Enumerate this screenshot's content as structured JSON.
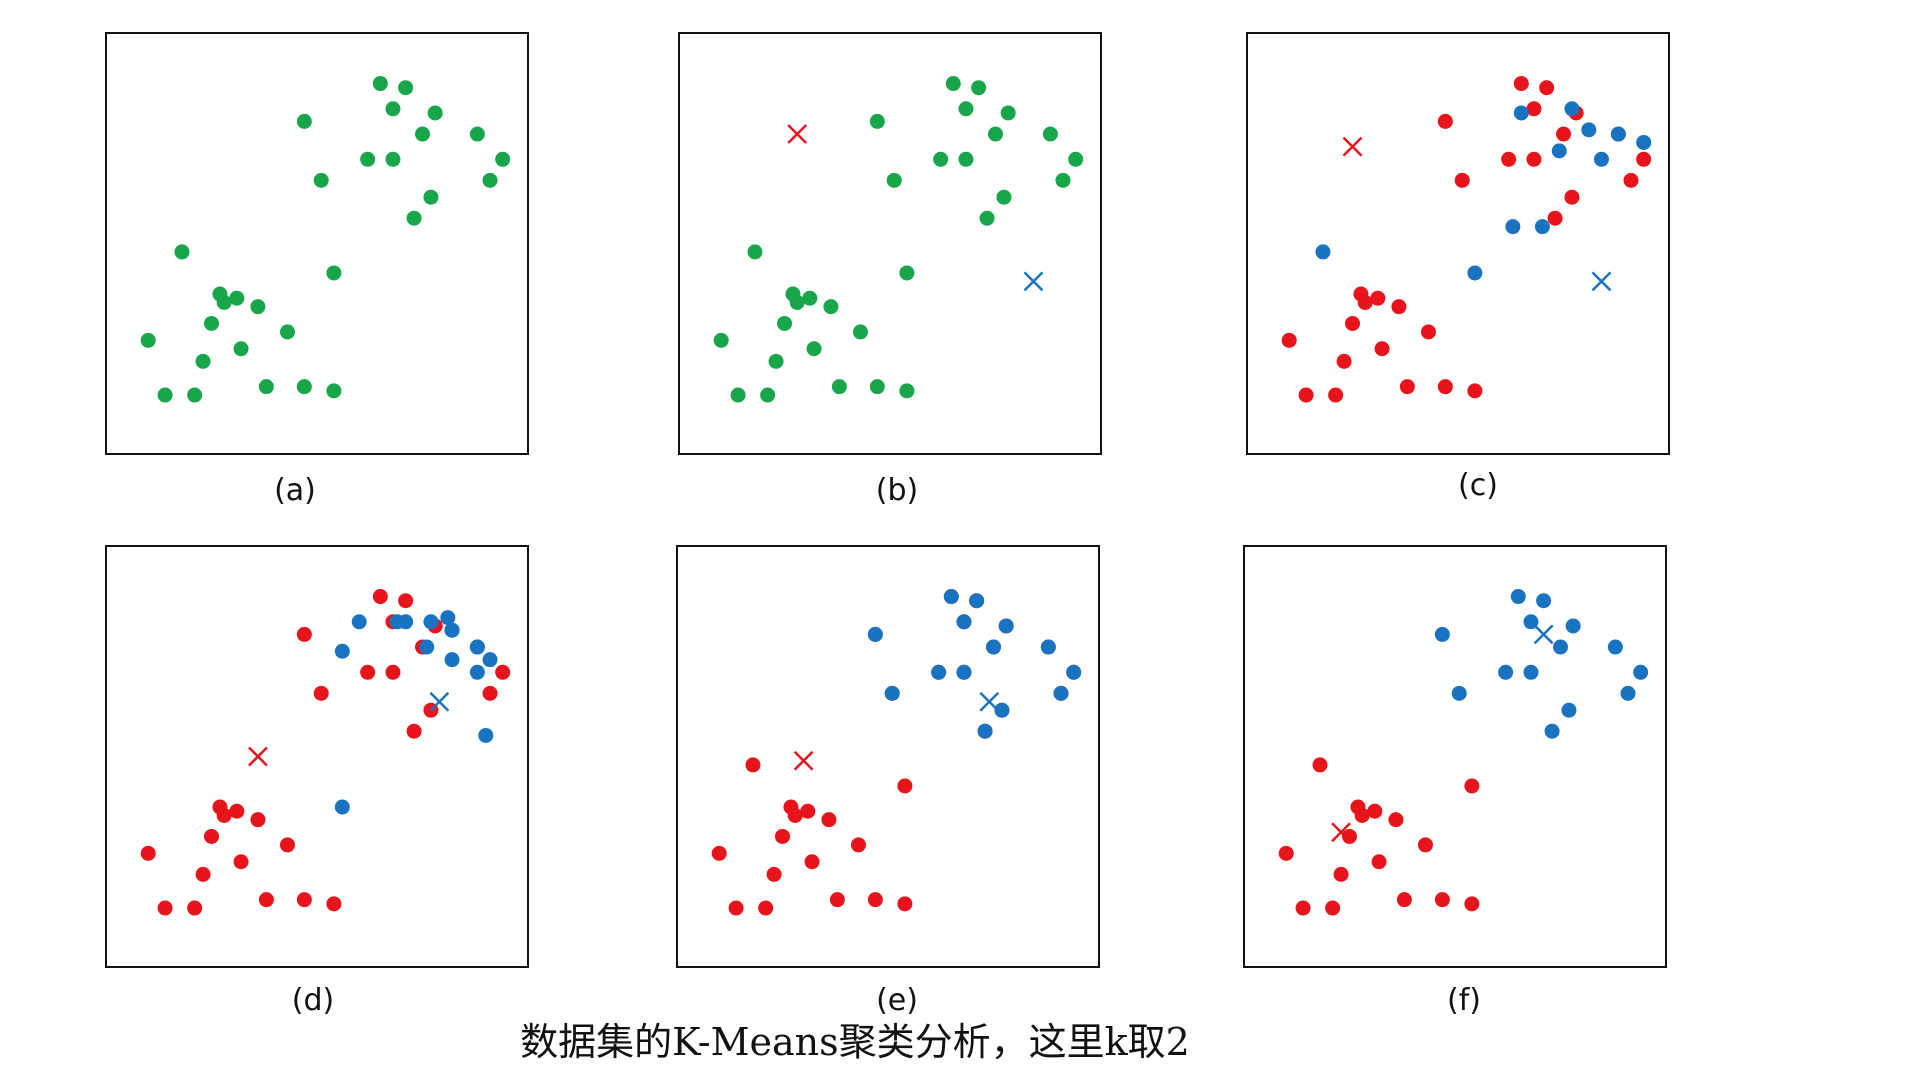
{
  "caption": "数据集的K-Means聚类分析，这里k取2",
  "colors": {
    "green": "#19a64b",
    "red": "#e8141b",
    "blue": "#1a73c0"
  },
  "chart_data": [
    {
      "type": "scatter",
      "label": "(a)",
      "xlim": [
        0,
        100
      ],
      "ylim": [
        0,
        100
      ],
      "series": [
        {
          "color": "green",
          "points": [
            [
              51,
              65
            ],
            [
              47,
              79
            ],
            [
              65,
              88
            ],
            [
              71,
              87
            ],
            [
              78,
              81
            ],
            [
              68,
              82
            ],
            [
              75,
              76
            ],
            [
              62,
              70
            ],
            [
              77,
              61
            ],
            [
              68,
              70
            ],
            [
              73,
              56
            ],
            [
              88,
              76
            ],
            [
              94,
              70
            ],
            [
              91,
              65
            ],
            [
              47,
              16
            ],
            [
              54,
              15
            ],
            [
              43,
              29
            ],
            [
              32,
              25
            ],
            [
              38,
              16
            ],
            [
              10,
              27
            ],
            [
              36,
              35
            ],
            [
              27,
              38
            ],
            [
              14,
              14
            ],
            [
              21,
              14
            ],
            [
              23,
              22
            ],
            [
              25,
              31
            ],
            [
              31,
              37
            ],
            [
              28,
              36
            ],
            [
              18,
              48
            ],
            [
              54,
              43
            ]
          ]
        }
      ],
      "centroids": []
    },
    {
      "type": "scatter",
      "label": "(b)",
      "xlim": [
        0,
        100
      ],
      "ylim": [
        0,
        100
      ],
      "series": [
        {
          "color": "green",
          "points": [
            [
              51,
              65
            ],
            [
              47,
              79
            ],
            [
              65,
              88
            ],
            [
              71,
              87
            ],
            [
              78,
              81
            ],
            [
              68,
              82
            ],
            [
              75,
              76
            ],
            [
              62,
              70
            ],
            [
              77,
              61
            ],
            [
              68,
              70
            ],
            [
              73,
              56
            ],
            [
              88,
              76
            ],
            [
              94,
              70
            ],
            [
              91,
              65
            ],
            [
              47,
              16
            ],
            [
              54,
              15
            ],
            [
              43,
              29
            ],
            [
              32,
              25
            ],
            [
              38,
              16
            ],
            [
              10,
              27
            ],
            [
              36,
              35
            ],
            [
              27,
              38
            ],
            [
              14,
              14
            ],
            [
              21,
              14
            ],
            [
              23,
              22
            ],
            [
              25,
              31
            ],
            [
              31,
              37
            ],
            [
              28,
              36
            ],
            [
              18,
              48
            ],
            [
              54,
              43
            ]
          ]
        }
      ],
      "centroids": [
        {
          "color": "red",
          "x": 28,
          "y": 76
        },
        {
          "color": "blue",
          "x": 84,
          "y": 41
        }
      ]
    },
    {
      "type": "scatter",
      "label": "(c)",
      "xlim": [
        0,
        100
      ],
      "ylim": [
        0,
        100
      ],
      "series": [
        {
          "color": "red",
          "points": [
            [
              51,
              65
            ],
            [
              47,
              79
            ],
            [
              65,
              88
            ],
            [
              71,
              87
            ],
            [
              78,
              81
            ],
            [
              68,
              82
            ],
            [
              75,
              76
            ],
            [
              62,
              70
            ],
            [
              77,
              61
            ],
            [
              68,
              70
            ],
            [
              73,
              56
            ],
            [
              88,
              76
            ],
            [
              94,
              70
            ],
            [
              91,
              65
            ],
            [
              47,
              16
            ],
            [
              54,
              15
            ],
            [
              43,
              29
            ],
            [
              32,
              25
            ],
            [
              38,
              16
            ],
            [
              10,
              27
            ],
            [
              36,
              35
            ],
            [
              27,
              38
            ],
            [
              14,
              14
            ],
            [
              21,
              14
            ],
            [
              23,
              22
            ],
            [
              25,
              31
            ],
            [
              31,
              37
            ],
            [
              28,
              36
            ]
          ]
        },
        {
          "color": "blue",
          "points": [
            [
              18,
              48
            ],
            [
              54,
              43
            ],
            [
              63,
              54
            ],
            [
              70,
              54
            ],
            [
              74,
              72
            ],
            [
              65,
              81
            ],
            [
              77,
              82
            ],
            [
              81,
              77
            ],
            [
              84,
              70
            ],
            [
              94,
              74
            ],
            [
              88,
              76
            ]
          ]
        }
      ],
      "centroids": [
        {
          "color": "red",
          "x": 25,
          "y": 73
        },
        {
          "color": "blue",
          "x": 84,
          "y": 41
        }
      ]
    },
    {
      "type": "scatter",
      "label": "(d)",
      "xlim": [
        0,
        100
      ],
      "ylim": [
        0,
        100
      ],
      "series": [
        {
          "color": "red",
          "points": [
            [
              51,
              65
            ],
            [
              47,
              79
            ],
            [
              65,
              88
            ],
            [
              71,
              87
            ],
            [
              78,
              81
            ],
            [
              68,
              82
            ],
            [
              75,
              76
            ],
            [
              62,
              70
            ],
            [
              77,
              61
            ],
            [
              68,
              70
            ],
            [
              73,
              56
            ],
            [
              88,
              76
            ],
            [
              94,
              70
            ],
            [
              91,
              65
            ],
            [
              47,
              16
            ],
            [
              54,
              15
            ],
            [
              43,
              29
            ],
            [
              32,
              25
            ],
            [
              38,
              16
            ],
            [
              10,
              27
            ],
            [
              36,
              35
            ],
            [
              27,
              38
            ],
            [
              14,
              14
            ],
            [
              21,
              14
            ],
            [
              23,
              22
            ],
            [
              25,
              31
            ],
            [
              31,
              37
            ],
            [
              28,
              36
            ]
          ]
        },
        {
          "color": "blue",
          "points": [
            [
              56,
              38
            ],
            [
              56,
              75
            ],
            [
              60,
              82
            ],
            [
              71,
              82
            ],
            [
              77,
              82
            ],
            [
              69,
              82
            ],
            [
              81,
              83
            ],
            [
              76,
              76
            ],
            [
              82,
              73
            ],
            [
              91,
              73
            ],
            [
              88,
              76
            ],
            [
              88,
              70
            ],
            [
              82,
              80
            ],
            [
              90,
              55
            ],
            [
              82,
              80
            ]
          ]
        }
      ],
      "centroids": [
        {
          "color": "red",
          "x": 36,
          "y": 50
        },
        {
          "color": "blue",
          "x": 79,
          "y": 63
        }
      ]
    },
    {
      "type": "scatter",
      "label": "(e)",
      "xlim": [
        0,
        100
      ],
      "ylim": [
        0,
        100
      ],
      "series": [
        {
          "color": "red",
          "points": [
            [
              51,
              65
            ],
            [
              47,
              79
            ],
            [
              65,
              88
            ],
            [
              71,
              87
            ],
            [
              78,
              81
            ],
            [
              68,
              82
            ],
            [
              75,
              76
            ],
            [
              62,
              70
            ],
            [
              77,
              61
            ],
            [
              68,
              70
            ],
            [
              73,
              56
            ],
            [
              88,
              76
            ],
            [
              94,
              70
            ],
            [
              91,
              65
            ],
            [
              47,
              16
            ],
            [
              54,
              15
            ],
            [
              43,
              29
            ],
            [
              32,
              25
            ],
            [
              38,
              16
            ],
            [
              10,
              27
            ],
            [
              36,
              35
            ],
            [
              27,
              38
            ],
            [
              14,
              14
            ],
            [
              21,
              14
            ],
            [
              23,
              22
            ],
            [
              25,
              31
            ],
            [
              31,
              37
            ],
            [
              28,
              36
            ],
            [
              18,
              48
            ],
            [
              54,
              43
            ]
          ]
        },
        {
          "color": "blue",
          "points": [
            [
              51,
              65
            ],
            [
              47,
              79
            ],
            [
              65,
              88
            ],
            [
              71,
              87
            ],
            [
              78,
              81
            ],
            [
              68,
              82
            ],
            [
              75,
              76
            ],
            [
              62,
              70
            ],
            [
              77,
              61
            ],
            [
              68,
              70
            ],
            [
              73,
              56
            ],
            [
              88,
              76
            ],
            [
              94,
              70
            ],
            [
              91,
              65
            ]
          ]
        }
      ],
      "centroids": [
        {
          "color": "red",
          "x": 30,
          "y": 49
        },
        {
          "color": "blue",
          "x": 74,
          "y": 63
        }
      ]
    },
    {
      "type": "scatter",
      "label": "(f)",
      "xlim": [
        0,
        100
      ],
      "ylim": [
        0,
        100
      ],
      "series": [
        {
          "color": "red",
          "points": [
            [
              47,
              16
            ],
            [
              54,
              15
            ],
            [
              43,
              29
            ],
            [
              32,
              25
            ],
            [
              38,
              16
            ],
            [
              10,
              27
            ],
            [
              36,
              35
            ],
            [
              27,
              38
            ],
            [
              14,
              14
            ],
            [
              21,
              14
            ],
            [
              23,
              22
            ],
            [
              25,
              31
            ],
            [
              31,
              37
            ],
            [
              28,
              36
            ],
            [
              18,
              48
            ],
            [
              54,
              43
            ]
          ]
        },
        {
          "color": "blue",
          "points": [
            [
              51,
              65
            ],
            [
              47,
              79
            ],
            [
              65,
              88
            ],
            [
              71,
              87
            ],
            [
              78,
              81
            ],
            [
              68,
              82
            ],
            [
              75,
              76
            ],
            [
              62,
              70
            ],
            [
              77,
              61
            ],
            [
              68,
              70
            ],
            [
              73,
              56
            ],
            [
              88,
              76
            ],
            [
              94,
              70
            ],
            [
              91,
              65
            ]
          ]
        }
      ],
      "centroids": [
        {
          "color": "red",
          "x": 23,
          "y": 32
        },
        {
          "color": "blue",
          "x": 71,
          "y": 79
        }
      ]
    }
  ]
}
